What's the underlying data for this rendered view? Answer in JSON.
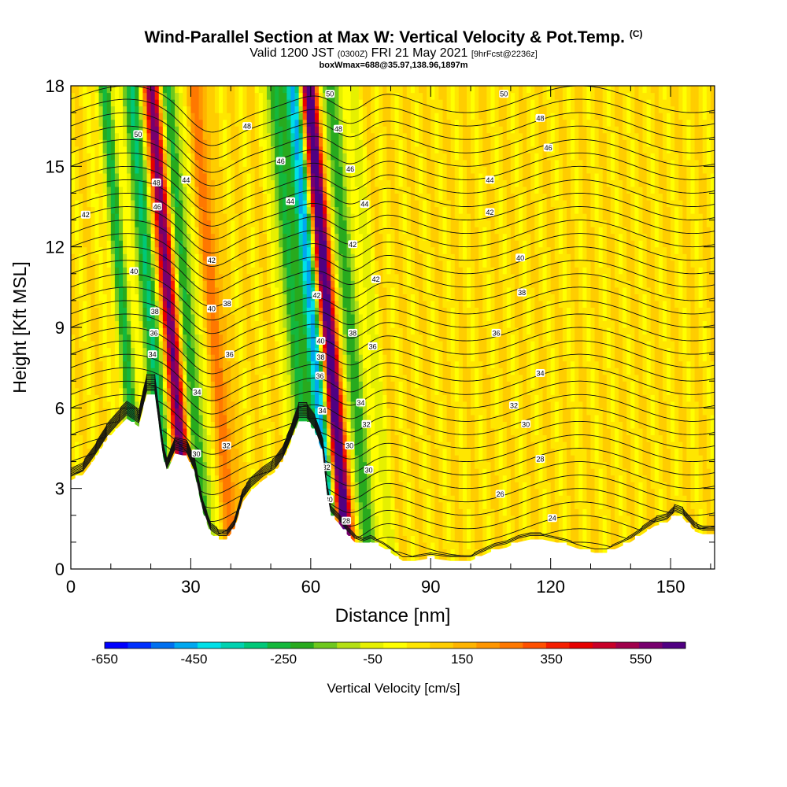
{
  "header": {
    "title": "Wind-Parallel Section at Max W: Vertical Velocity & Pot.Temp.",
    "title_tag": "(C)",
    "valid_prefix": "Valid 1200 JST",
    "valid_zulu": "(0300Z)",
    "valid_date": "FRI 21 May 2021",
    "forecast": "[9hrFcst@2236z]",
    "box_info": "boxWmax=688@35.97,138.96,1897m"
  },
  "chart_data": {
    "type": "heatmap",
    "xlabel": "Distance [nm]",
    "ylabel": "Height [Kft MSL]",
    "xlim": [
      0,
      161
    ],
    "ylim": [
      0,
      18
    ],
    "x_ticks": [
      0,
      30,
      60,
      90,
      120,
      150
    ],
    "y_ticks": [
      0,
      3,
      6,
      9,
      12,
      15,
      18
    ],
    "colorbar": {
      "label": "Vertical Velocity [cm/s]",
      "range": [
        -650,
        650
      ],
      "tick_labels": [
        "-650",
        "-450",
        "-250",
        "-50",
        "150",
        "350",
        "550"
      ],
      "colors": [
        "#0000ff",
        "#0030ff",
        "#0070f0",
        "#00a8f0",
        "#00e0e8",
        "#00d2b0",
        "#00c878",
        "#14b83c",
        "#28aa1e",
        "#6ec81e",
        "#b4e014",
        "#e6f000",
        "#ffff00",
        "#ffe600",
        "#ffcd00",
        "#ffb400",
        "#ff9600",
        "#ff7800",
        "#ff5000",
        "#f51e00",
        "#e60000",
        "#c80028",
        "#a0004b",
        "#78006e",
        "#500082"
      ]
    },
    "velocity_features_cm_s": [
      {
        "x": 15,
        "w": -280
      },
      {
        "x": 22,
        "w": -400
      },
      {
        "x": 26.5,
        "w": 520
      },
      {
        "x": 31,
        "w": -320
      },
      {
        "x": 38,
        "w": 200
      },
      {
        "x": 57,
        "w": -300
      },
      {
        "x": 62,
        "w": -560
      },
      {
        "x": 66,
        "w": 640
      },
      {
        "x": 71,
        "w": -300
      },
      {
        "x": 76,
        "w": -110
      }
    ],
    "terrain_kft": [
      [
        0,
        3.3
      ],
      [
        3,
        3.5
      ],
      [
        6,
        4.1
      ],
      [
        9,
        4.8
      ],
      [
        12,
        5.3
      ],
      [
        14,
        5.6
      ],
      [
        17,
        5.3
      ],
      [
        19,
        6.5
      ],
      [
        21,
        6.5
      ],
      [
        23,
        4.2
      ],
      [
        24,
        3.6
      ],
      [
        26,
        4.3
      ],
      [
        29,
        4.2
      ],
      [
        31,
        3.5
      ],
      [
        33,
        2.1
      ],
      [
        35,
        1.3
      ],
      [
        37,
        1.1
      ],
      [
        39,
        1.1
      ],
      [
        41,
        1.5
      ],
      [
        43,
        2.5
      ],
      [
        45,
        2.9
      ],
      [
        48,
        3.3
      ],
      [
        51,
        3.6
      ],
      [
        53,
        4.0
      ],
      [
        55,
        4.7
      ],
      [
        57,
        5.5
      ],
      [
        59,
        5.5
      ],
      [
        61,
        5.1
      ],
      [
        63,
        4.3
      ],
      [
        64,
        2.8
      ],
      [
        65,
        2.0
      ],
      [
        67,
        1.7
      ],
      [
        69,
        1.3
      ],
      [
        71,
        1.0
      ],
      [
        73,
        0.9
      ],
      [
        75,
        1.0
      ],
      [
        78,
        0.8
      ],
      [
        81,
        0.5
      ],
      [
        83,
        0.3
      ],
      [
        86,
        0.3
      ],
      [
        90,
        0.4
      ],
      [
        95,
        0.3
      ],
      [
        100,
        0.3
      ],
      [
        103,
        0.5
      ],
      [
        106,
        0.7
      ],
      [
        109,
        0.8
      ],
      [
        112,
        1.0
      ],
      [
        115,
        1.1
      ],
      [
        118,
        1.1
      ],
      [
        121,
        1.0
      ],
      [
        124,
        0.9
      ],
      [
        128,
        0.7
      ],
      [
        131,
        0.6
      ],
      [
        134,
        0.6
      ],
      [
        137,
        0.8
      ],
      [
        140,
        1.0
      ],
      [
        143,
        1.3
      ],
      [
        146,
        1.6
      ],
      [
        149,
        1.7
      ],
      [
        151,
        2.0
      ],
      [
        153,
        1.9
      ],
      [
        156,
        1.4
      ],
      [
        158,
        1.3
      ],
      [
        161,
        1.3
      ]
    ],
    "isentropes_degC": {
      "label": "Pot.Temp. (C)",
      "contour_labels": [
        {
          "x": 3.7,
          "y": 13.2,
          "t": "42"
        },
        {
          "x": 16.8,
          "y": 16.2,
          "t": "50"
        },
        {
          "x": 21.4,
          "y": 14.4,
          "t": "48"
        },
        {
          "x": 21.6,
          "y": 13.5,
          "t": "46"
        },
        {
          "x": 28.8,
          "y": 14.5,
          "t": "44"
        },
        {
          "x": 15.8,
          "y": 11.1,
          "t": "40"
        },
        {
          "x": 35.2,
          "y": 11.5,
          "t": "42"
        },
        {
          "x": 35.2,
          "y": 9.7,
          "t": "40"
        },
        {
          "x": 39.1,
          "y": 9.9,
          "t": "38"
        },
        {
          "x": 21.0,
          "y": 9.6,
          "t": "38"
        },
        {
          "x": 20.8,
          "y": 8.8,
          "t": "36"
        },
        {
          "x": 20.4,
          "y": 8.0,
          "t": "34"
        },
        {
          "x": 39.7,
          "y": 8.0,
          "t": "36"
        },
        {
          "x": 31.6,
          "y": 6.6,
          "t": "34"
        },
        {
          "x": 38.9,
          "y": 4.6,
          "t": "32"
        },
        {
          "x": 31.4,
          "y": 4.3,
          "t": "30"
        },
        {
          "x": 44.1,
          "y": 16.5,
          "t": "48"
        },
        {
          "x": 52.5,
          "y": 15.2,
          "t": "46"
        },
        {
          "x": 54.9,
          "y": 13.7,
          "t": "44"
        },
        {
          "x": 64.8,
          "y": 17.7,
          "t": "50"
        },
        {
          "x": 66.9,
          "y": 16.4,
          "t": "48"
        },
        {
          "x": 69.9,
          "y": 14.9,
          "t": "46"
        },
        {
          "x": 73.5,
          "y": 13.6,
          "t": "44"
        },
        {
          "x": 70.5,
          "y": 12.1,
          "t": "42"
        },
        {
          "x": 61.5,
          "y": 10.2,
          "t": "42"
        },
        {
          "x": 76.3,
          "y": 10.8,
          "t": "42"
        },
        {
          "x": 62.5,
          "y": 8.5,
          "t": "40"
        },
        {
          "x": 62.5,
          "y": 7.9,
          "t": "38"
        },
        {
          "x": 62.3,
          "y": 7.2,
          "t": "36"
        },
        {
          "x": 70.5,
          "y": 8.8,
          "t": "38"
        },
        {
          "x": 75.5,
          "y": 8.3,
          "t": "36"
        },
        {
          "x": 62.9,
          "y": 5.9,
          "t": "34"
        },
        {
          "x": 72.5,
          "y": 6.2,
          "t": "34"
        },
        {
          "x": 73.9,
          "y": 5.4,
          "t": "32"
        },
        {
          "x": 63.9,
          "y": 3.8,
          "t": "32"
        },
        {
          "x": 69.7,
          "y": 4.6,
          "t": "30"
        },
        {
          "x": 74.5,
          "y": 3.7,
          "t": "30"
        },
        {
          "x": 64.5,
          "y": 2.6,
          "t": "30"
        },
        {
          "x": 68.9,
          "y": 1.8,
          "t": "28"
        },
        {
          "x": 108.3,
          "y": 17.7,
          "t": "50"
        },
        {
          "x": 117.4,
          "y": 16.8,
          "t": "48"
        },
        {
          "x": 119.4,
          "y": 15.7,
          "t": "46"
        },
        {
          "x": 104.8,
          "y": 14.5,
          "t": "44"
        },
        {
          "x": 104.8,
          "y": 13.3,
          "t": "42"
        },
        {
          "x": 112.4,
          "y": 11.6,
          "t": "40"
        },
        {
          "x": 112.8,
          "y": 10.3,
          "t": "38"
        },
        {
          "x": 106.4,
          "y": 8.8,
          "t": "36"
        },
        {
          "x": 117.4,
          "y": 7.3,
          "t": "34"
        },
        {
          "x": 110.8,
          "y": 6.1,
          "t": "32"
        },
        {
          "x": 113.8,
          "y": 5.4,
          "t": "30"
        },
        {
          "x": 117.4,
          "y": 4.1,
          "t": "28"
        },
        {
          "x": 107.4,
          "y": 2.8,
          "t": "26"
        },
        {
          "x": 120.4,
          "y": 1.9,
          "t": "24"
        }
      ]
    }
  }
}
